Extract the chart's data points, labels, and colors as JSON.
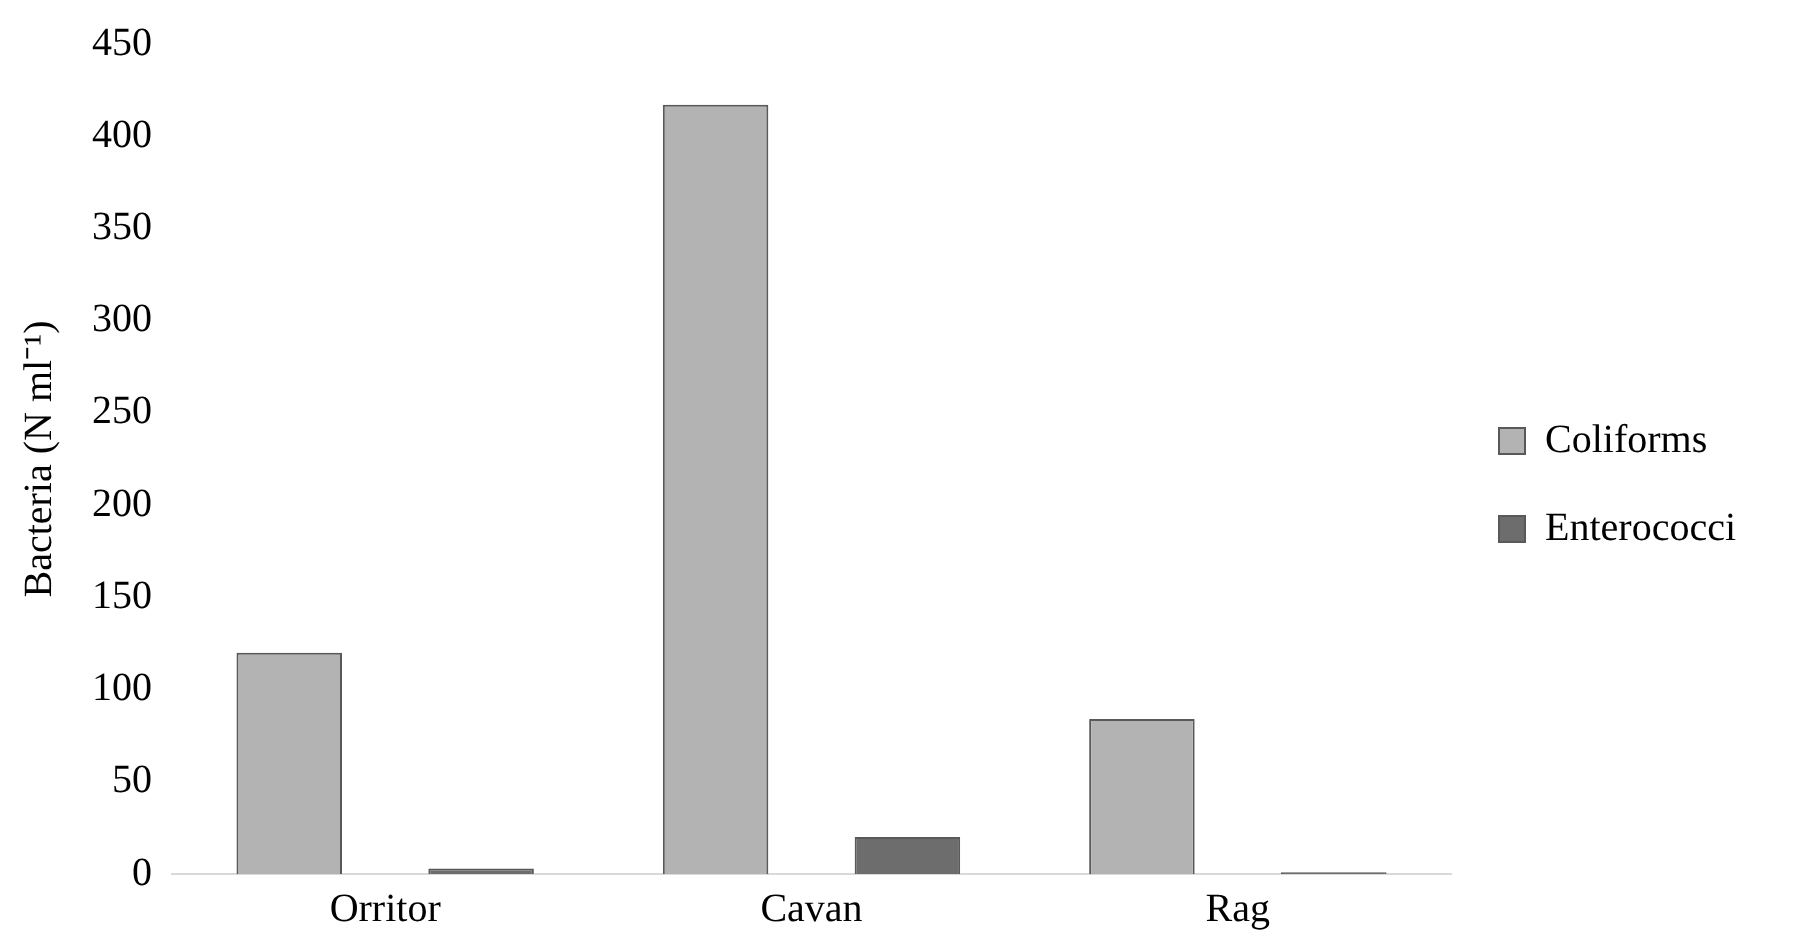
{
  "chart_data": {
    "type": "bar",
    "ylabel": "Bacteria (N ml⁻¹)",
    "categories": [
      "Orritor",
      "Cavan",
      "Rag"
    ],
    "series": [
      {
        "name": "Coliforms",
        "color": "#b3b3b3",
        "values": [
          120,
          417,
          84
        ]
      },
      {
        "name": "Enterococci",
        "color": "#6d6d6d",
        "values": [
          3,
          20,
          1
        ]
      }
    ],
    "ylim": [
      0,
      450
    ],
    "yticks": [
      0,
      50,
      100,
      150,
      200,
      250,
      300,
      350,
      400,
      450
    ],
    "grid": false,
    "legend": "right"
  }
}
